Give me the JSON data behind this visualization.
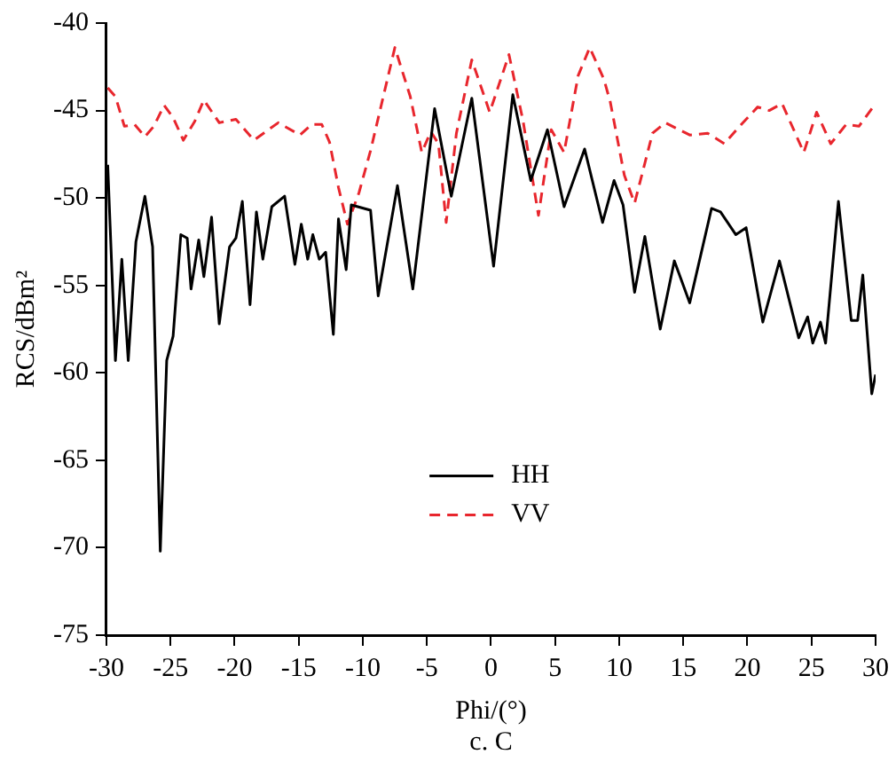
{
  "chart_data": {
    "type": "line",
    "xlabel": "Phi/(°)",
    "ylabel": "RCS/dBm²",
    "annotations": [
      "c. C"
    ],
    "xlim": [
      -30,
      30
    ],
    "xticks": [
      -30,
      -25,
      -20,
      -15,
      -10,
      -5,
      0,
      5,
      10,
      15,
      20,
      25,
      30
    ],
    "ylim": [
      -75,
      -40
    ],
    "yticks": [
      -75,
      -70,
      -65,
      -60,
      -55,
      -50,
      -45,
      -40
    ],
    "grid": false,
    "legend": "bottom",
    "marker": "none",
    "series": [
      {
        "name": "HH",
        "color": "#000000",
        "line_style": "solid",
        "x": [
          -29.9,
          -29.3,
          -28.8,
          -28.3,
          -27.7,
          -27.0,
          -26.4,
          -25.8,
          -25.3,
          -24.8,
          -24.2,
          -23.7,
          -23.4,
          -22.8,
          -22.4,
          -21.8,
          -21.2,
          -20.4,
          -19.9,
          -19.4,
          -18.8,
          -18.3,
          -17.8,
          -17.1,
          -16.1,
          -15.3,
          -14.8,
          -14.3,
          -13.9,
          -13.4,
          -12.9,
          -12.3,
          -11.9,
          -11.3,
          -10.9,
          -9.4,
          -8.8,
          -7.3,
          -6.1,
          -4.4,
          -3.1,
          -1.5,
          0.2,
          1.7,
          3.1,
          4.4,
          5.7,
          7.3,
          8.7,
          9.6,
          10.3,
          11.2,
          12.0,
          13.2,
          14.3,
          15.5,
          17.2,
          17.9,
          19.1,
          19.9,
          21.2,
          22.5,
          24.0,
          24.7,
          25.1,
          25.7,
          26.1,
          27.1,
          28.1,
          28.6,
          29.0,
          29.7,
          30.0
        ],
        "values": [
          -48.1,
          -59.3,
          -53.5,
          -59.3,
          -52.5,
          -49.9,
          -52.8,
          -70.2,
          -59.3,
          -57.9,
          -52.1,
          -52.3,
          -55.2,
          -52.4,
          -54.5,
          -51.1,
          -57.2,
          -52.8,
          -52.3,
          -50.2,
          -56.1,
          -50.8,
          -53.5,
          -50.5,
          -49.9,
          -53.8,
          -51.5,
          -53.5,
          -52.1,
          -53.5,
          -53.1,
          -57.8,
          -51.2,
          -54.1,
          -50.4,
          -50.7,
          -55.6,
          -49.3,
          -55.2,
          -44.9,
          -49.9,
          -44.3,
          -53.9,
          -44.1,
          -49.0,
          -46.1,
          -50.5,
          -47.2,
          -51.4,
          -49.0,
          -50.4,
          -55.4,
          -52.2,
          -57.5,
          -53.6,
          -56.0,
          -50.6,
          -50.8,
          -52.1,
          -51.7,
          -57.1,
          -53.6,
          -58.0,
          -56.8,
          -58.3,
          -57.1,
          -58.3,
          -50.2,
          -57.0,
          -57.0,
          -54.4,
          -61.2,
          -60.1
        ]
      },
      {
        "name": "VV",
        "color": "#e8262d",
        "line_style": "dashed",
        "x": [
          -29.9,
          -29.3,
          -28.6,
          -27.8,
          -27.0,
          -26.3,
          -25.5,
          -24.8,
          -24.0,
          -23.1,
          -22.4,
          -21.2,
          -19.9,
          -18.5,
          -16.6,
          -14.9,
          -14.0,
          -13.2,
          -12.6,
          -11.9,
          -11.2,
          -10.3,
          -9.4,
          -7.5,
          -6.3,
          -5.4,
          -4.7,
          -4.1,
          -3.5,
          -2.7,
          -1.5,
          -0.1,
          1.4,
          2.5,
          3.7,
          4.7,
          5.7,
          6.8,
          7.7,
          8.8,
          9.3,
          10.4,
          11.2,
          12.6,
          13.6,
          15.5,
          16.9,
          18.2,
          19.4,
          20.8,
          21.7,
          22.7,
          24.4,
          25.4,
          26.5,
          27.7,
          28.7,
          29.8
        ],
        "values": [
          -43.7,
          -44.2,
          -45.9,
          -45.8,
          -46.5,
          -45.9,
          -44.7,
          -45.4,
          -46.7,
          -45.6,
          -44.4,
          -45.7,
          -45.5,
          -46.7,
          -45.7,
          -46.4,
          -45.8,
          -45.8,
          -46.8,
          -49.4,
          -51.5,
          -49.7,
          -47.3,
          -41.4,
          -44.2,
          -47.4,
          -46.2,
          -46.9,
          -51.4,
          -46.3,
          -42.1,
          -45.1,
          -41.8,
          -45.6,
          -51.0,
          -46.1,
          -47.4,
          -43.0,
          -41.4,
          -43.2,
          -44.5,
          -48.7,
          -50.3,
          -46.3,
          -45.7,
          -46.4,
          -46.3,
          -46.9,
          -45.9,
          -44.8,
          -45.0,
          -44.6,
          -47.4,
          -45.1,
          -46.9,
          -45.8,
          -45.9,
          -44.8
        ]
      }
    ]
  }
}
